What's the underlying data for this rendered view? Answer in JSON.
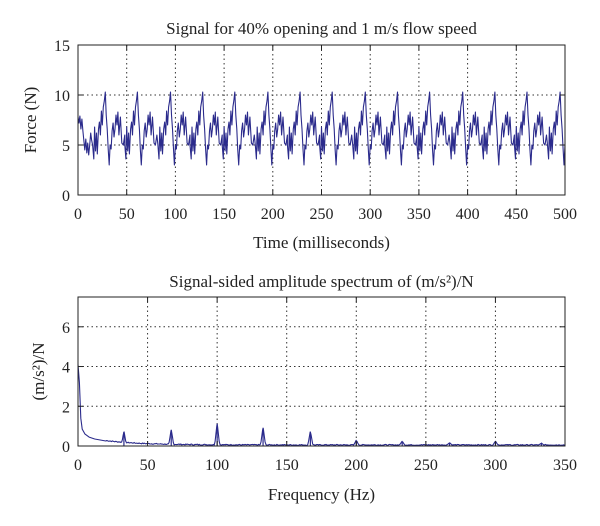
{
  "chart_data": [
    {
      "type": "line",
      "title": "Signal for 40% opening and 1 m/s flow speed",
      "xlabel": "Time (milliseconds)",
      "ylabel": "Force (N)",
      "xlim": [
        0,
        500
      ],
      "ylim": [
        0,
        15
      ],
      "xticks": [
        "0",
        "50",
        "100",
        "150",
        "200",
        "250",
        "300",
        "350",
        "400",
        "450",
        "500"
      ],
      "yticks": [
        "0",
        "5",
        "10",
        "15"
      ],
      "grid": true,
      "line_color": "#2b2b8c",
      "signal": {
        "period_ms": 33.3,
        "baseline_N": 5,
        "min_N": 3,
        "max_N": 10.3,
        "peak_times_ms": [
          28,
          61,
          95,
          128,
          161,
          195,
          228,
          261,
          295,
          328,
          361,
          395,
          428,
          461,
          495
        ]
      }
    },
    {
      "type": "line",
      "title": "Signal-sided amplitude spectrum of (m/s²)/N",
      "xlabel": "Frequency (Hz)",
      "ylabel": "(m/s²)/N",
      "xlim": [
        0,
        350
      ],
      "ylim": [
        0,
        7.5
      ],
      "xticks": [
        "0",
        "50",
        "100",
        "150",
        "200",
        "250",
        "300",
        "350"
      ],
      "yticks": [
        "0",
        "2",
        "4",
        "6"
      ],
      "grid": true,
      "line_color": "#2b2b8c",
      "series": [
        {
          "x": [
            0,
            1,
            2,
            3,
            5,
            8,
            12,
            20,
            33,
            67,
            100,
            133,
            167,
            200,
            233,
            267,
            300,
            333
          ],
          "values": [
            4.1,
            3.2,
            1.4,
            0.85,
            0.6,
            0.45,
            0.35,
            0.25,
            0.7,
            0.8,
            1.1,
            0.9,
            0.7,
            0.25,
            0.2,
            0.12,
            0.2,
            0.1
          ]
        }
      ]
    }
  ]
}
